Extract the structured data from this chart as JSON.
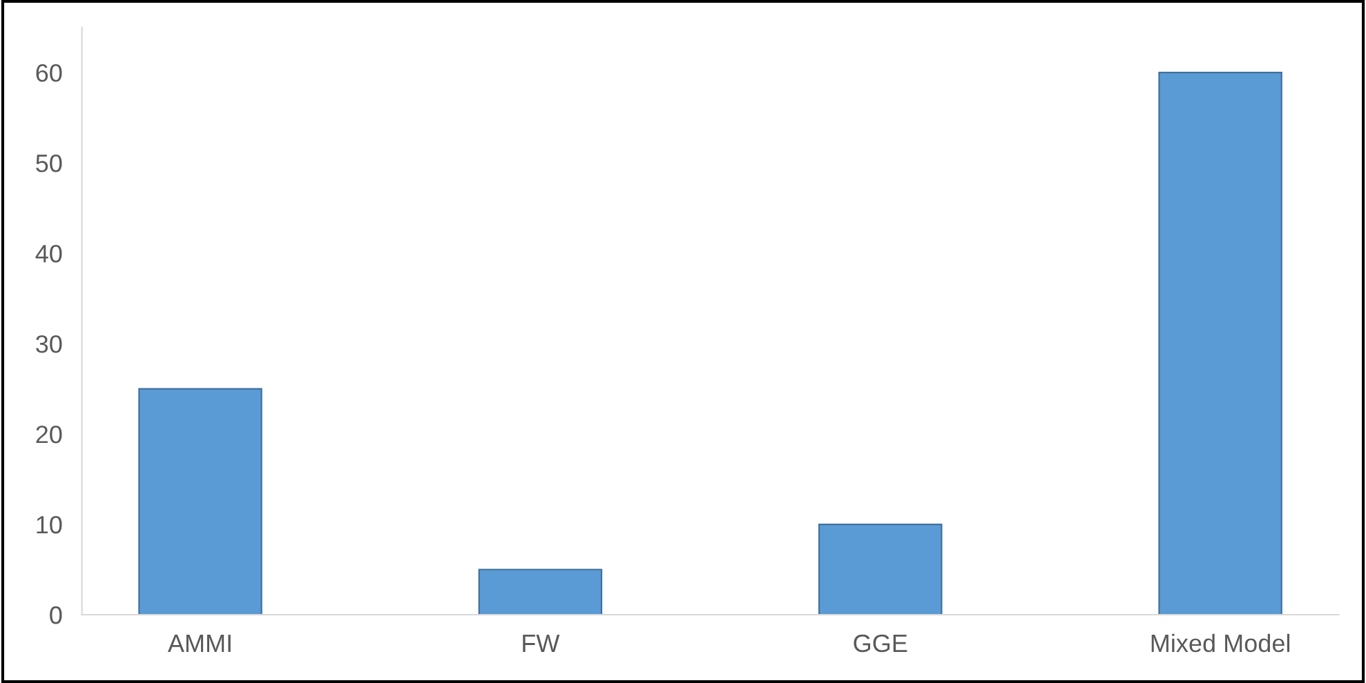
{
  "chart_data": {
    "type": "bar",
    "categories": [
      "AMMI",
      "FW",
      "GGE",
      "Mixed Model"
    ],
    "values": [
      25,
      5,
      10,
      60
    ],
    "color": "#5b9bd5",
    "ylim": [
      0,
      65
    ],
    "yticks": [
      0,
      10,
      20,
      30,
      40,
      50,
      60
    ],
    "grid": false
  }
}
